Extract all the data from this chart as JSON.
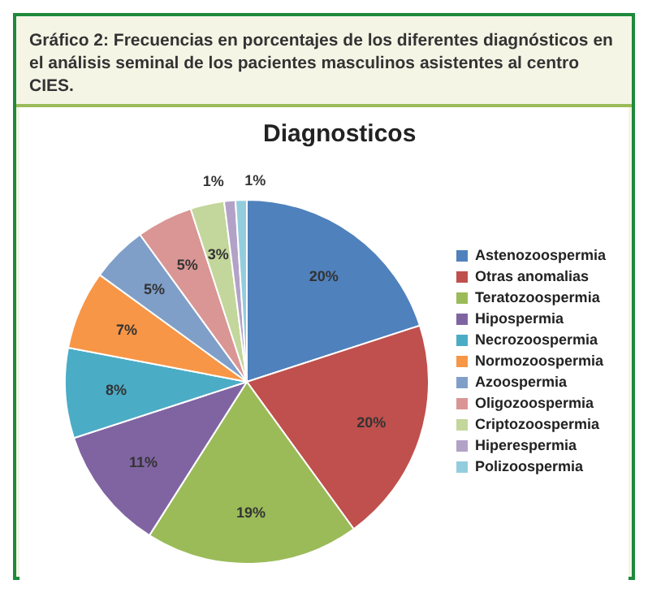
{
  "chart_data": {
    "type": "pie",
    "title": "Gráfico 2: Frecuencias en porcentajes de los diferentes diagnósticos  en el análisis seminal de los pacientes masculinos asistentes al centro CIES.",
    "subtitle": "Diagnosticos",
    "categories": [
      "Astenozoospermia",
      "Otras anomalias",
      "Teratozoospermia",
      "Hipospermia",
      "Necrozoospermia",
      "Normozoospermia",
      "Azoospermia",
      "Oligozoospermia",
      "Criptozoospermia",
      "Hiperespermia",
      "Polizoospermia"
    ],
    "values": [
      20,
      20,
      19,
      11,
      8,
      7,
      5,
      5,
      3,
      1,
      1
    ],
    "value_labels": [
      "20%",
      "20%",
      "19%",
      "11%",
      "8%",
      "7%",
      "5%",
      "5%",
      "3%",
      "1%",
      "1%"
    ],
    "colors": [
      "#4f81bd",
      "#c0504d",
      "#9bbb59",
      "#8064a2",
      "#4bacc6",
      "#f79646",
      "#7f9fc9",
      "#d99694",
      "#c3d69b",
      "#b3a2c7",
      "#93cddd"
    ],
    "legend": "right"
  }
}
